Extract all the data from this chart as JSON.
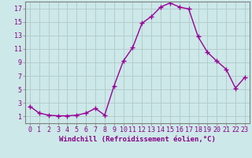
{
  "x": [
    0,
    1,
    2,
    3,
    4,
    5,
    6,
    7,
    8,
    9,
    10,
    11,
    12,
    13,
    14,
    15,
    16,
    17,
    18,
    19,
    20,
    21,
    22,
    23
  ],
  "y": [
    2.5,
    1.5,
    1.2,
    1.1,
    1.1,
    1.2,
    1.5,
    2.2,
    1.2,
    5.5,
    9.2,
    11.2,
    14.8,
    15.8,
    17.2,
    17.8,
    17.2,
    16.9,
    12.8,
    10.5,
    9.2,
    8.0,
    5.2,
    6.8
  ],
  "line_color": "#990099",
  "marker": "+",
  "markersize": 4,
  "linewidth": 1.0,
  "bg_color": "#cce8e8",
  "grid_color": "#b0c8c8",
  "xlabel": "Windchill (Refroidissement éolien,°C)",
  "xlim": [
    -0.5,
    23.5
  ],
  "ylim": [
    0,
    18
  ],
  "yticks": [
    1,
    3,
    5,
    7,
    9,
    11,
    13,
    15,
    17
  ],
  "xticks": [
    0,
    1,
    2,
    3,
    4,
    5,
    6,
    7,
    8,
    9,
    10,
    11,
    12,
    13,
    14,
    15,
    16,
    17,
    18,
    19,
    20,
    21,
    22,
    23
  ],
  "label_color": "#880088",
  "tick_label_color": "#880088",
  "xlabel_fontsize": 6.5,
  "tick_fontsize": 6.0,
  "markeredgewidth": 1.0
}
